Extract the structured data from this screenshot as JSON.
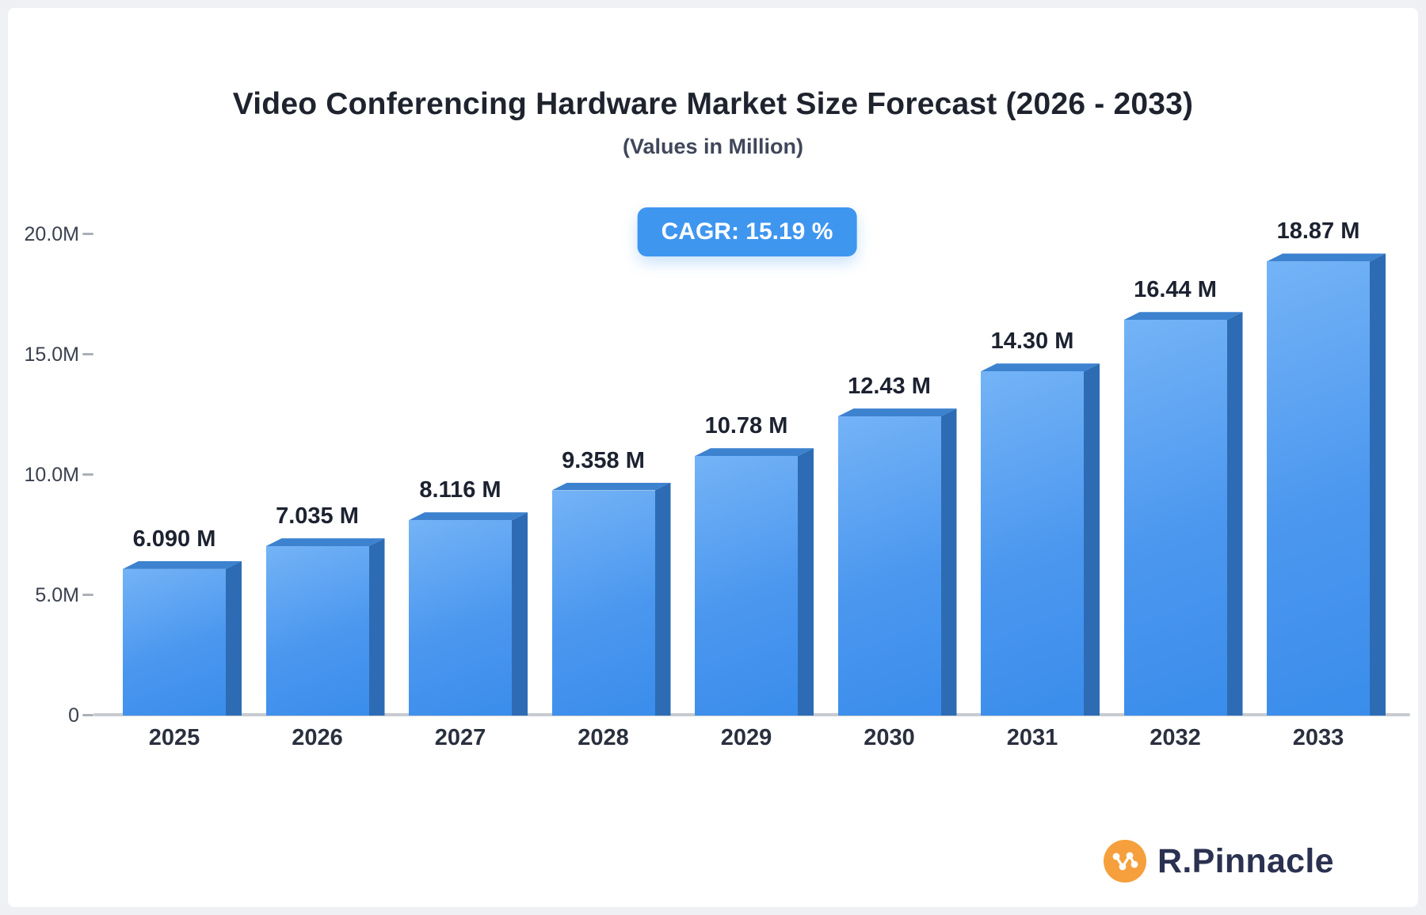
{
  "header": {
    "title": "Video Conferencing Hardware Market Size Forecast (2026 - 2033)",
    "subtitle": "(Values in Million)"
  },
  "cagr_badge": {
    "label": "CAGR: 15.19 %"
  },
  "chart_data": {
    "type": "bar",
    "title": "Video Conferencing Hardware Market Size Forecast (2026 - 2033)",
    "subtitle": "(Values in Million)",
    "categories": [
      "2025",
      "2026",
      "2027",
      "2028",
      "2029",
      "2030",
      "2031",
      "2032",
      "2033"
    ],
    "values": [
      6.09,
      7.035,
      8.116,
      9.358,
      10.78,
      12.43,
      14.3,
      16.44,
      18.87
    ],
    "value_labels": [
      "6.090 M",
      "7.035 M",
      "8.116 M",
      "9.358 M",
      "10.78 M",
      "12.43 M",
      "14.30 M",
      "16.44 M",
      "18.87 M"
    ],
    "xlabel": "",
    "ylabel": "",
    "ylim": [
      0,
      20
    ],
    "yticks": [
      {
        "value": 0,
        "label": "0"
      },
      {
        "value": 5,
        "label": "5.0M"
      },
      {
        "value": 10,
        "label": "10.0M"
      },
      {
        "value": 15,
        "label": "15.0M"
      },
      {
        "value": 20,
        "label": "20.0M"
      }
    ],
    "grid": false,
    "legend": "none",
    "bar_style": "3d-extruded"
  },
  "colors": {
    "badge_bg": "#3f96ef",
    "bar_front_light": "#74b3f6",
    "bar_front_mid": "#4b97ef",
    "bar_front_dark": "#3a8deb",
    "bar_side": "#2d6cb4",
    "bar_top": "#3c82cf",
    "axis": "#c7cbd1"
  },
  "logo": {
    "text": "R.Pinnacle",
    "icon": "network-nodes-icon",
    "icon_color": "#f5a03c"
  }
}
